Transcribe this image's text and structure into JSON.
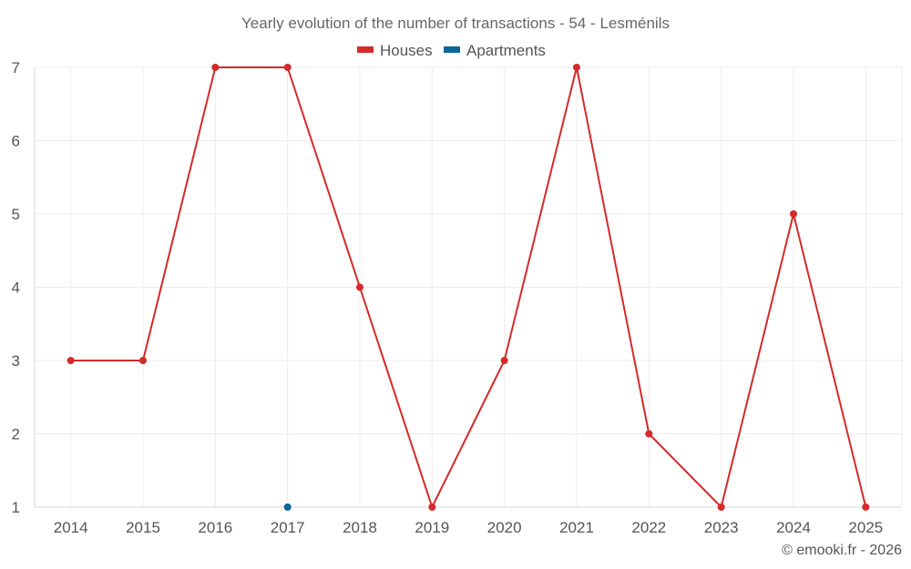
{
  "chart_data": {
    "type": "line",
    "title": "Yearly evolution of the number of transactions - 54 - Lesménils",
    "categories": [
      "2014",
      "2015",
      "2016",
      "2017",
      "2018",
      "2019",
      "2020",
      "2021",
      "2022",
      "2023",
      "2024",
      "2025"
    ],
    "ylim": [
      1,
      7
    ],
    "yticks": [
      1,
      2,
      3,
      4,
      5,
      6,
      7
    ],
    "grid": true,
    "legend_position": "top-center",
    "series": [
      {
        "name": "Houses",
        "color": "#d42a2a",
        "values": [
          3,
          3,
          7,
          7,
          4,
          1,
          3,
          7,
          2,
          1,
          5,
          1
        ]
      },
      {
        "name": "Apartments",
        "color": "#0a6599",
        "values": [
          null,
          null,
          null,
          1,
          null,
          null,
          null,
          null,
          null,
          null,
          null,
          null
        ]
      }
    ]
  },
  "footer": {
    "copyright": "© emooki.fr - 2026"
  }
}
